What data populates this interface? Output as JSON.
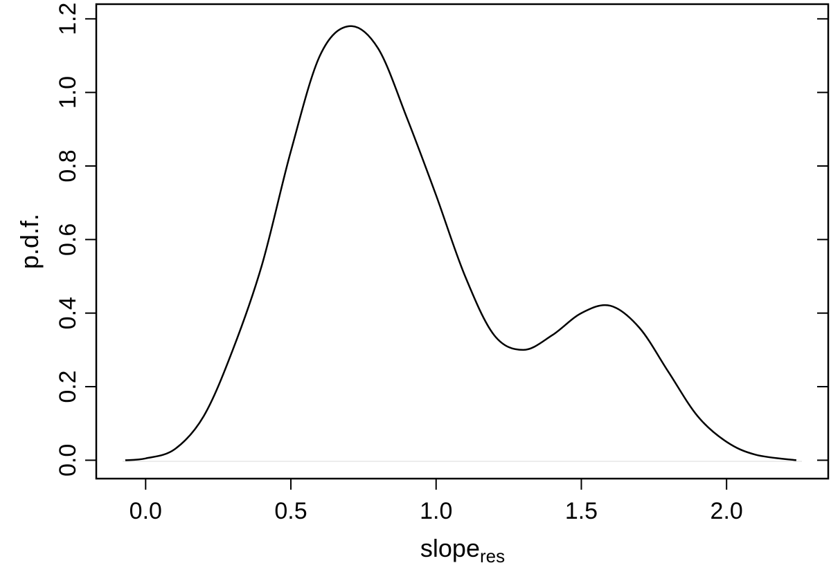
{
  "chart_data": {
    "type": "line",
    "xlabel": "slope",
    "xlabel_subscript": "res",
    "ylabel": "p.d.f.",
    "xlim": [
      -0.17,
      2.35
    ],
    "ylim": [
      -0.05,
      1.24
    ],
    "x_ticks": [
      0.0,
      0.5,
      1.0,
      1.5,
      2.0
    ],
    "x_tick_labels": [
      "0.0",
      "0.5",
      "1.0",
      "1.5",
      "2.0"
    ],
    "y_ticks": [
      0.0,
      0.2,
      0.4,
      0.6,
      0.8,
      1.0,
      1.2
    ],
    "y_tick_labels": [
      "0.0",
      "0.2",
      "0.4",
      "0.6",
      "0.8",
      "1.0",
      "1.2"
    ],
    "grid": false,
    "series": [
      {
        "color": "#000000",
        "x": [
          -0.07,
          0.0,
          0.1,
          0.2,
          0.3,
          0.4,
          0.5,
          0.6,
          0.7,
          0.8,
          0.9,
          1.0,
          1.1,
          1.2,
          1.3,
          1.4,
          1.5,
          1.6,
          1.7,
          1.8,
          1.9,
          2.0,
          2.1,
          2.24
        ],
        "y": [
          0.0,
          0.005,
          0.03,
          0.12,
          0.3,
          0.53,
          0.84,
          1.1,
          1.18,
          1.12,
          0.93,
          0.72,
          0.5,
          0.34,
          0.3,
          0.34,
          0.4,
          0.42,
          0.36,
          0.24,
          0.12,
          0.05,
          0.015,
          0.0
        ]
      }
    ]
  }
}
